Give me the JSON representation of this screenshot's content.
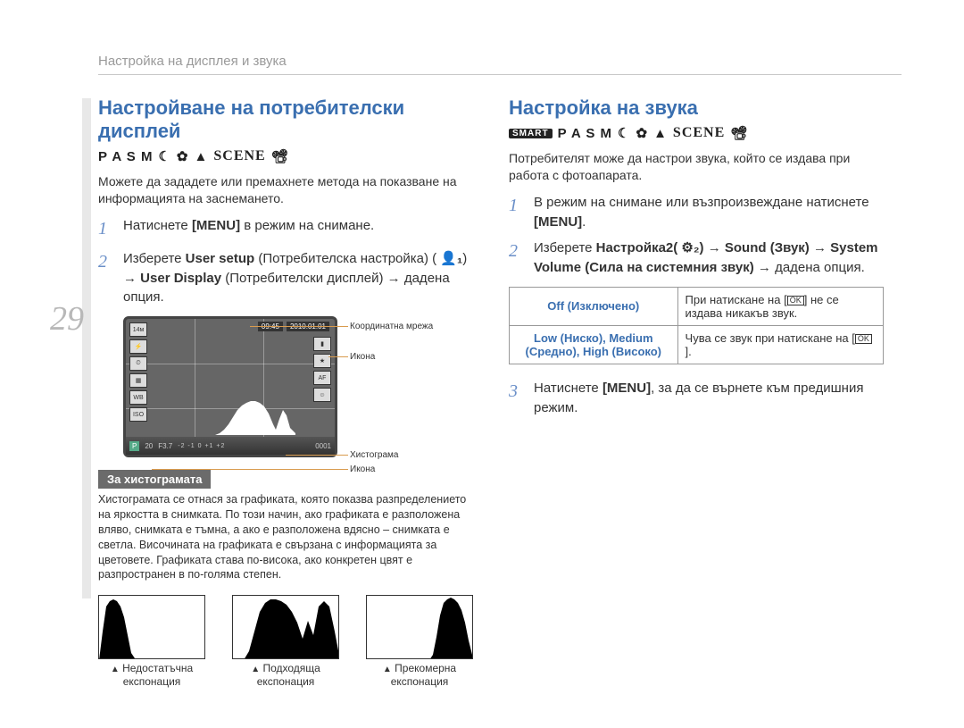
{
  "page_number": "29",
  "header": "Настройка на дисплея и звука",
  "left": {
    "title": "Настройване на потребителски дисплей",
    "modes": {
      "letters": "P A S M",
      "scene": "SCENE"
    },
    "intro": "Можете да зададете или премахнете метода на показване на информацията на заснемането.",
    "step1": "Натиснете <b>[MENU]</b> в режим на снимане.",
    "step2": "Изберете <b>User setup</b> (Потребителска настройка) ( <b>👤₁</b>) → <b>User Display</b> (Потребителски дисплей) → дадена опция.",
    "preview": {
      "time": "09:45",
      "date": "2010.01.01",
      "size_badge": "14м",
      "p_badge": "P",
      "aperture": "F3.7",
      "frames": "0001",
      "iso": "20"
    },
    "callouts": {
      "grid": "Координатна мрежа",
      "icon1": "Икона",
      "histogram": "Хистограма",
      "icon2": "Икона"
    },
    "histo_header": "За хистограмата",
    "histo_text": "Хистограмата се отнася за графиката, която показва разпределението на яркостта в снимката. По този начин, ако графиката е разположена вляво, снимката е тъмна, а ако е разположена вдясно – снимката е светла. Височината на графиката е свързана с информацията за цветовете. Графиката става по-висока, ако конкретен цвят е разпространен в по-голяма степен.",
    "samples": {
      "under": "Недостатъчна експонация",
      "good": "Подходяща експонация",
      "over": "Прекомерна експонация"
    },
    "polygons": {
      "preview_hist": "0,42 5,40 10,36 15,30 20,22 25,14 30,9 35,6 40,4 45,4 50,6 55,10 60,18 65,30 68,36 72,24 76,14 80,20 84,34 90,40 90,42",
      "under": "0,72 4,40 8,12 12,6 16,4 20,6 24,12 28,24 32,44 36,64 40,70 50,72 120,72",
      "good": "0,72 12,72 18,62 24,40 30,18 36,8 42,4 48,4 54,6 60,10 66,18 72,30 78,48 84,28 90,44 96,12 102,6 108,12 114,40 120,72",
      "over": "0,72 70,72 74,66 78,46 82,22 86,8 90,4 94,2 98,4 102,8 106,16 110,30 114,50 118,66 120,72"
    }
  },
  "right": {
    "title": "Настройка на звука",
    "modes": {
      "smart": "SMART",
      "letters": "P A S M",
      "scene": "SCENE"
    },
    "intro": "Потребителят може да настрои звука, който се издава при работа с фотоапарата.",
    "step1": "В режим на снимане или възпроизвеждане натиснете <b>[MENU]</b>.",
    "step2": "Изберете <b>Настройка2( ⚙₂)</b> → <b>Sound (Звук)</b> → <b>System Volume (Сила на системния звук)</b> → дадена опция.",
    "step3": "Натиснете <b>[MENU]</b>, за да се върнете към предишния режим.",
    "table": {
      "off_label": "Off (Изключено)",
      "off_desc_pre": "При натискане на ",
      "off_desc_post": " не се издава никакъв звук.",
      "lmh_label": "Low (Ниско), Medium (Средно), High (Високо)",
      "lmh_desc_pre": "Чува се звук при натискане на ",
      "lmh_desc_post": ".",
      "ok_key": "OK"
    }
  },
  "colors": {
    "accent": "#3a6fb0",
    "pagenum": "#b8b8b8",
    "callout_line": "#d99b4e"
  }
}
